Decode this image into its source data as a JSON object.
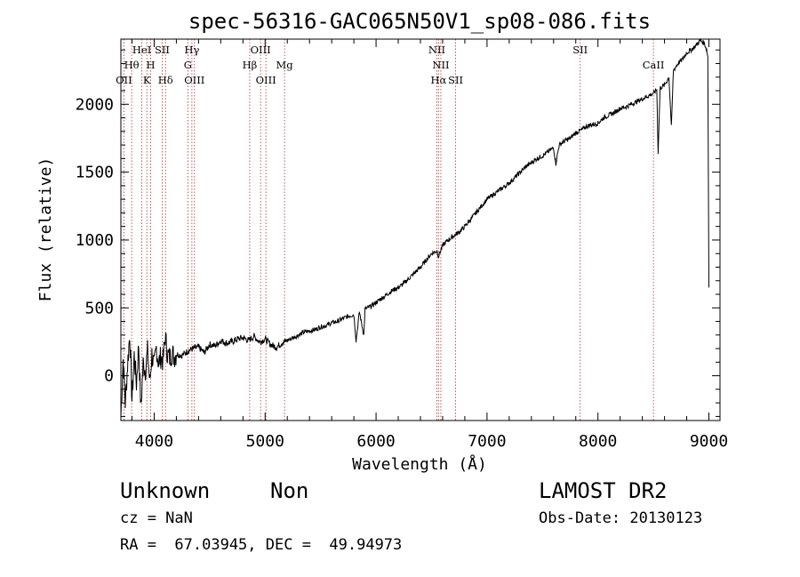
{
  "chart_data": {
    "type": "line",
    "title": "spec-56316-GAC065N50V1_sp08-086.fits",
    "xlabel": "Wavelength (Å)",
    "ylabel": "Flux (relative)",
    "xlim": [
      3700,
      9100
    ],
    "ylim": [
      -330,
      2480
    ],
    "xticks": [
      4000,
      5000,
      6000,
      7000,
      8000,
      9000
    ],
    "yticks": [
      0,
      500,
      1000,
      1500,
      2000
    ],
    "xtick_labels": [
      "4000",
      "5000",
      "6000",
      "7000",
      "8000",
      "9000"
    ],
    "ytick_labels": [
      "0",
      "500",
      "1000",
      "1500",
      "2000"
    ],
    "series": [
      {
        "x": [
          3700,
          3720,
          3740,
          3760,
          3780,
          3800,
          3820,
          3840,
          3860,
          3880,
          3900,
          3920,
          3940,
          3960,
          3980,
          4000,
          4020,
          4040,
          4060,
          4080,
          4100,
          4120,
          4140,
          4160,
          4180,
          4200,
          4250,
          4300,
          4350,
          4400,
          4450,
          4500,
          4550,
          4600,
          4650,
          4700,
          4750,
          4800,
          4850,
          4900,
          4950,
          5000,
          5050,
          5100,
          5150,
          5200,
          5250,
          5300,
          5350,
          5400,
          5450,
          5500,
          5550,
          5600,
          5650,
          5700,
          5750,
          5800,
          5820,
          5850,
          5890,
          5900,
          5950,
          6000,
          6050,
          6100,
          6150,
          6200,
          6250,
          6300,
          6350,
          6400,
          6450,
          6500,
          6550,
          6563,
          6600,
          6650,
          6700,
          6750,
          6800,
          6850,
          6900,
          6950,
          7000,
          7050,
          7100,
          7150,
          7200,
          7250,
          7300,
          7350,
          7400,
          7450,
          7500,
          7550,
          7600,
          7620,
          7650,
          7700,
          7750,
          7800,
          7850,
          7900,
          7950,
          8000,
          8050,
          8100,
          8150,
          8200,
          8250,
          8300,
          8350,
          8400,
          8450,
          8500,
          8530,
          8542,
          8560,
          8600,
          8640,
          8662,
          8680,
          8720,
          8760,
          8800,
          8840,
          8880,
          8920,
          8960,
          8980,
          8990,
          9000
        ],
        "y": [
          -300,
          120,
          -200,
          80,
          310,
          -180,
          150,
          -60,
          230,
          -250,
          90,
          40,
          180,
          -50,
          160,
          60,
          210,
          90,
          140,
          110,
          290,
          160,
          130,
          170,
          140,
          160,
          150,
          180,
          200,
          210,
          170,
          230,
          220,
          260,
          240,
          250,
          270,
          280,
          260,
          290,
          250,
          270,
          230,
          210,
          240,
          260,
          280,
          300,
          320,
          330,
          340,
          360,
          370,
          390,
          400,
          420,
          440,
          450,
          260,
          470,
          300,
          490,
          510,
          540,
          570,
          600,
          630,
          650,
          680,
          720,
          760,
          800,
          850,
          900,
          920,
          880,
          960,
          1000,
          1030,
          1060,
          1100,
          1150,
          1200,
          1250,
          1300,
          1330,
          1360,
          1390,
          1420,
          1460,
          1500,
          1540,
          1570,
          1600,
          1620,
          1650,
          1680,
          1560,
          1700,
          1730,
          1750,
          1790,
          1810,
          1840,
          1850,
          1860,
          1900,
          1920,
          1940,
          1970,
          1980,
          2000,
          2020,
          2040,
          2060,
          2080,
          2110,
          1640,
          2120,
          2140,
          2200,
          1830,
          2250,
          2300,
          2330,
          2380,
          2400,
          2430,
          2470,
          2450,
          2400,
          2350,
          650
        ]
      }
    ],
    "lines": [
      {
        "label": "OII",
        "x": 3727,
        "row": 3
      },
      {
        "label": "Hθ",
        "x": 3797,
        "row": 2
      },
      {
        "label": "HeI",
        "x": 3889,
        "row": 1
      },
      {
        "label": "K",
        "x": 3934,
        "row": 3
      },
      {
        "label": "H",
        "x": 3969,
        "row": 2
      },
      {
        "label": "SII",
        "x": 4072,
        "row": 1
      },
      {
        "label": "Hδ",
        "x": 4102,
        "row": 3
      },
      {
        "label": "G",
        "x": 4304,
        "row": 2
      },
      {
        "label": "Hγ",
        "x": 4340,
        "row": 1
      },
      {
        "label": "OIII",
        "x": 4363,
        "row": 3
      },
      {
        "label": "Hβ",
        "x": 4861,
        "row": 2
      },
      {
        "label": "OIII",
        "x": 4959,
        "row": 1
      },
      {
        "label": "OIII",
        "x": 5007,
        "row": 3
      },
      {
        "label": "Mg",
        "x": 5175,
        "row": 2
      },
      {
        "label": "NII",
        "x": 6548,
        "row": 1
      },
      {
        "label": "Hα",
        "x": 6563,
        "row": 3
      },
      {
        "label": "NII",
        "x": 6584,
        "row": 2
      },
      {
        "label": "SII",
        "x": 6717,
        "row": 3
      },
      {
        "label": "SII",
        "x": 7840,
        "row": 1
      },
      {
        "label": "CaII",
        "x": 8500,
        "row": 2
      }
    ],
    "grid": false,
    "legend": "none"
  },
  "info": {
    "class": "Unknown",
    "subclass": "Non",
    "survey": "LAMOST DR2",
    "cz": "cz = NaN",
    "obsdate": "Obs-Date: 20130123",
    "coords": "RA =  67.03945, DEC =  49.94973"
  }
}
